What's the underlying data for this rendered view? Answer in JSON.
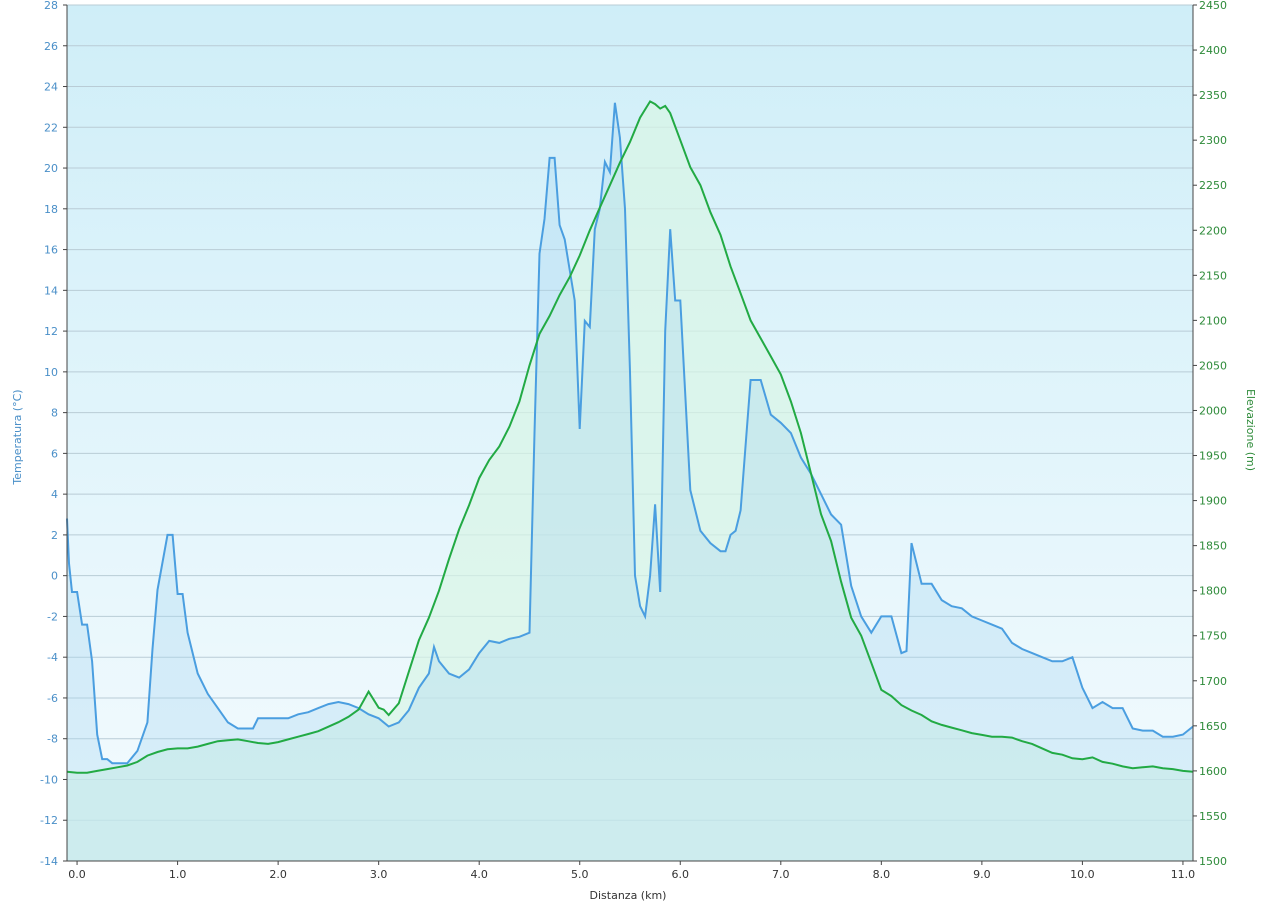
{
  "chart_data": {
    "type": "line",
    "xlabel": "Distanza  (km)",
    "ylabel_left": "Temperatura (°C)",
    "ylabel_right": "Elevazione (m)",
    "xlim": [
      -0.1,
      11.1
    ],
    "ylim_left": [
      -14,
      28
    ],
    "ylim_right": [
      1500,
      2450
    ],
    "x_ticks": [
      "0.0",
      "1.0",
      "2.0",
      "3.0",
      "4.0",
      "5.0",
      "6.0",
      "7.0",
      "8.0",
      "9.0",
      "10.0",
      "11.0"
    ],
    "y_ticks_left": [
      "-14",
      "-12",
      "-10",
      "-8",
      "-6",
      "-4",
      "-2",
      "0",
      "2",
      "4",
      "6",
      "8",
      "10",
      "12",
      "14",
      "16",
      "18",
      "20",
      "22",
      "24",
      "26",
      "28"
    ],
    "y_ticks_right": [
      "1500",
      "1550",
      "1600",
      "1650",
      "1700",
      "1750",
      "1800",
      "1850",
      "1900",
      "1950",
      "2000",
      "2050",
      "2100",
      "2150",
      "2200",
      "2250",
      "2300",
      "2350",
      "2400",
      "2450"
    ],
    "grid": true,
    "colors": {
      "temperature": "#4a9ee0",
      "elevation": "#22aa44",
      "tick_left": "#4a8fc8",
      "tick_right": "#2e8b3a",
      "background_top": "#cfeef8",
      "background_bottom": "#f4fbfe"
    },
    "series": [
      {
        "name": "Temperatura (°C)",
        "axis": "left",
        "x": [
          -0.1,
          -0.08,
          -0.05,
          0.0,
          0.05,
          0.1,
          0.15,
          0.2,
          0.25,
          0.3,
          0.35,
          0.4,
          0.5,
          0.6,
          0.7,
          0.75,
          0.8,
          0.9,
          0.95,
          1.0,
          1.05,
          1.1,
          1.2,
          1.3,
          1.4,
          1.5,
          1.6,
          1.7,
          1.75,
          1.8,
          2.0,
          2.1,
          2.2,
          2.3,
          2.4,
          2.5,
          2.6,
          2.7,
          2.8,
          2.9,
          3.0,
          3.1,
          3.2,
          3.3,
          3.4,
          3.5,
          3.55,
          3.6,
          3.7,
          3.8,
          3.9,
          4.0,
          4.1,
          4.2,
          4.3,
          4.4,
          4.5,
          4.55,
          4.6,
          4.65,
          4.7,
          4.75,
          4.8,
          4.85,
          4.9,
          4.95,
          5.0,
          5.05,
          5.1,
          5.15,
          5.2,
          5.25,
          5.3,
          5.35,
          5.4,
          5.45,
          5.5,
          5.55,
          5.6,
          5.65,
          5.7,
          5.75,
          5.8,
          5.85,
          5.9,
          5.95,
          6.0,
          6.1,
          6.2,
          6.3,
          6.4,
          6.45,
          6.5,
          6.55,
          6.6,
          6.7,
          6.8,
          6.9,
          7.0,
          7.1,
          7.2,
          7.3,
          7.4,
          7.5,
          7.6,
          7.7,
          7.8,
          7.9,
          8.0,
          8.1,
          8.2,
          8.25,
          8.3,
          8.4,
          8.5,
          8.6,
          8.7,
          8.8,
          8.9,
          9.0,
          9.1,
          9.2,
          9.3,
          9.4,
          9.5,
          9.6,
          9.7,
          9.8,
          9.9,
          10.0,
          10.1,
          10.2,
          10.3,
          10.4,
          10.5,
          10.6,
          10.7,
          10.8,
          10.9,
          11.0,
          11.1
        ],
        "values": [
          2.8,
          0.6,
          -0.8,
          -0.8,
          -2.4,
          -2.4,
          -4.2,
          -7.8,
          -9.0,
          -9.0,
          -9.2,
          -9.2,
          -9.2,
          -8.6,
          -7.2,
          -3.6,
          -0.7,
          2.0,
          2.0,
          -0.9,
          -0.9,
          -2.8,
          -4.8,
          -5.8,
          -6.5,
          -7.2,
          -7.5,
          -7.5,
          -7.5,
          -7.0,
          -7.0,
          -7.0,
          -6.8,
          -6.7,
          -6.5,
          -6.3,
          -6.2,
          -6.3,
          -6.5,
          -6.8,
          -7.0,
          -7.4,
          -7.2,
          -6.6,
          -5.5,
          -4.8,
          -3.5,
          -4.2,
          -4.8,
          -5.0,
          -4.6,
          -3.8,
          -3.2,
          -3.3,
          -3.1,
          -3.0,
          -2.8,
          7.0,
          15.8,
          17.5,
          20.5,
          20.5,
          17.2,
          16.5,
          15.0,
          13.5,
          7.2,
          12.5,
          12.2,
          17.0,
          18.0,
          20.3,
          19.8,
          23.2,
          21.5,
          18.0,
          10.0,
          0.0,
          -1.5,
          -2.0,
          0.0,
          3.5,
          -0.8,
          12.0,
          17.0,
          13.5,
          13.5,
          4.2,
          2.2,
          1.6,
          1.2,
          1.2,
          2.0,
          2.2,
          3.2,
          9.6,
          9.6,
          7.9,
          7.5,
          7.0,
          5.8,
          5.0,
          4.0,
          3.0,
          2.5,
          -0.5,
          -2.0,
          -2.8,
          -2.0,
          -2.0,
          -3.8,
          -3.7,
          1.6,
          -0.4,
          -0.4,
          -1.2,
          -1.5,
          -1.6,
          -2.0,
          -2.2,
          -2.4,
          -2.6,
          -3.3,
          -3.6,
          -3.8,
          -4.0,
          -4.2,
          -4.2,
          -4.0,
          -5.5,
          -6.5,
          -6.2,
          -6.5,
          -6.5,
          -7.5,
          -7.6,
          -7.6,
          -7.9,
          -7.9,
          -7.8,
          -7.4
        ]
      },
      {
        "name": "Elevazione (m)",
        "axis": "right",
        "x": [
          -0.1,
          0.0,
          0.1,
          0.2,
          0.3,
          0.4,
          0.5,
          0.6,
          0.7,
          0.8,
          0.9,
          1.0,
          1.1,
          1.2,
          1.3,
          1.4,
          1.5,
          1.6,
          1.7,
          1.8,
          1.9,
          2.0,
          2.1,
          2.2,
          2.3,
          2.4,
          2.5,
          2.6,
          2.7,
          2.8,
          2.85,
          2.9,
          3.0,
          3.05,
          3.1,
          3.2,
          3.3,
          3.4,
          3.5,
          3.6,
          3.7,
          3.8,
          3.9,
          4.0,
          4.1,
          4.2,
          4.3,
          4.4,
          4.5,
          4.6,
          4.7,
          4.8,
          4.9,
          5.0,
          5.1,
          5.2,
          5.3,
          5.4,
          5.5,
          5.6,
          5.7,
          5.75,
          5.8,
          5.85,
          5.9,
          6.0,
          6.1,
          6.2,
          6.3,
          6.4,
          6.5,
          6.6,
          6.7,
          6.8,
          6.9,
          7.0,
          7.1,
          7.2,
          7.3,
          7.4,
          7.5,
          7.6,
          7.7,
          7.8,
          7.9,
          8.0,
          8.1,
          8.2,
          8.3,
          8.4,
          8.5,
          8.6,
          8.7,
          8.8,
          8.9,
          9.0,
          9.1,
          9.2,
          9.3,
          9.4,
          9.5,
          9.6,
          9.7,
          9.8,
          9.9,
          10.0,
          10.1,
          10.2,
          10.3,
          10.4,
          10.5,
          10.6,
          10.7,
          10.8,
          10.9,
          11.0,
          11.1
        ],
        "values": [
          1599,
          1598,
          1598,
          1600,
          1602,
          1604,
          1606,
          1610,
          1617,
          1621,
          1624,
          1625,
          1625,
          1627,
          1630,
          1633,
          1634,
          1635,
          1633,
          1631,
          1630,
          1632,
          1635,
          1638,
          1641,
          1644,
          1649,
          1654,
          1660,
          1668,
          1678,
          1688,
          1670,
          1668,
          1662,
          1675,
          1710,
          1745,
          1770,
          1800,
          1835,
          1868,
          1895,
          1925,
          1945,
          1960,
          1982,
          2010,
          2050,
          2085,
          2105,
          2128,
          2148,
          2172,
          2200,
          2225,
          2250,
          2275,
          2298,
          2325,
          2343,
          2340,
          2335,
          2338,
          2330,
          2300,
          2270,
          2250,
          2220,
          2195,
          2160,
          2130,
          2100,
          2080,
          2060,
          2040,
          2010,
          1975,
          1930,
          1885,
          1855,
          1810,
          1770,
          1750,
          1720,
          1690,
          1683,
          1673,
          1667,
          1662,
          1655,
          1651,
          1648,
          1645,
          1642,
          1640,
          1638,
          1638,
          1637,
          1633,
          1630,
          1625,
          1620,
          1618,
          1614,
          1613,
          1615,
          1610,
          1608,
          1605,
          1603,
          1604,
          1605,
          1603,
          1602,
          1600,
          1599
        ]
      }
    ]
  }
}
